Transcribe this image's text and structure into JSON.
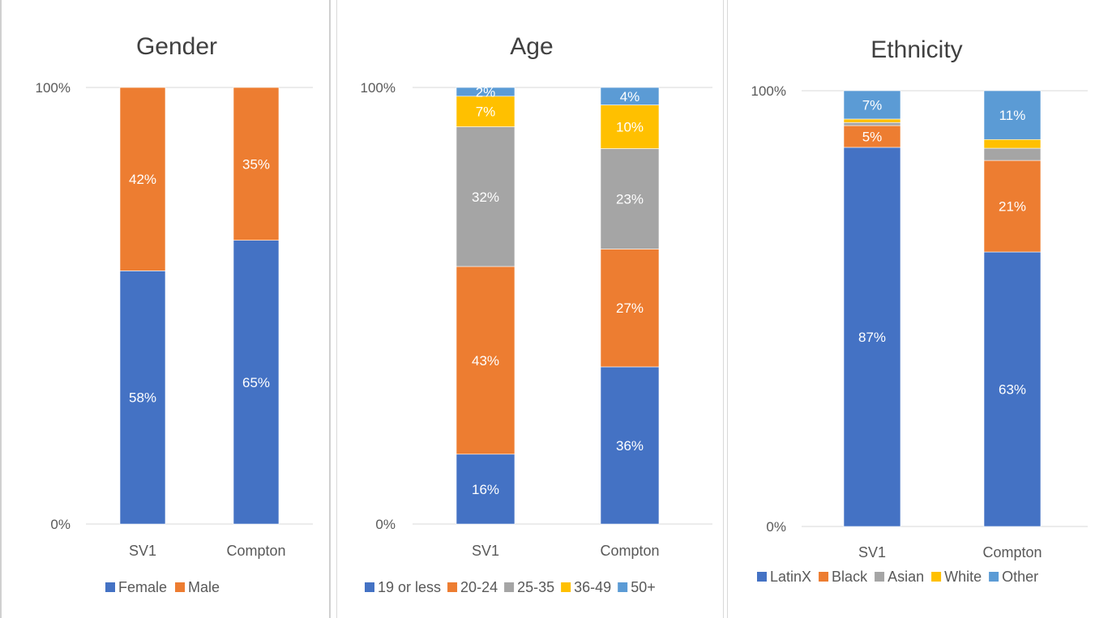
{
  "chart_data": [
    {
      "type": "bar",
      "stacked": true,
      "title": "Gender",
      "categories": [
        "SV1",
        "Compton"
      ],
      "yticks": [
        "0%",
        "100%"
      ],
      "ylim": [
        0,
        100
      ],
      "legend_position": "bottom",
      "series": [
        {
          "name": "Female",
          "color": "#4472C4",
          "values": [
            58,
            65
          ],
          "labels": [
            "58%",
            "65%"
          ]
        },
        {
          "name": "Male",
          "color": "#ED7D31",
          "values": [
            42,
            35
          ],
          "labels": [
            "42%",
            "35%"
          ]
        }
      ]
    },
    {
      "type": "bar",
      "stacked": true,
      "title": "Age",
      "categories": [
        "SV1",
        "Compton"
      ],
      "yticks": [
        "0%",
        "100%"
      ],
      "ylim": [
        0,
        100
      ],
      "legend_position": "bottom",
      "series": [
        {
          "name": "19 or less",
          "color": "#4472C4",
          "values": [
            16,
            36
          ],
          "labels": [
            "16%",
            "36%"
          ]
        },
        {
          "name": "20-24",
          "color": "#ED7D31",
          "values": [
            43,
            27
          ],
          "labels": [
            "43%",
            "27%"
          ]
        },
        {
          "name": "25-35",
          "color": "#A5A5A5",
          "values": [
            32,
            23
          ],
          "labels": [
            "32%",
            "23%"
          ]
        },
        {
          "name": "36-49",
          "color": "#FFC000",
          "values": [
            7,
            10
          ],
          "labels": [
            "7%",
            "10%"
          ]
        },
        {
          "name": "50+",
          "color": "#5B9BD5",
          "values": [
            2,
            4
          ],
          "labels": [
            "2%",
            "4%"
          ]
        }
      ]
    },
    {
      "type": "bar",
      "stacked": true,
      "title": "Ethnicity",
      "categories": [
        "SV1",
        "Compton"
      ],
      "yticks": [
        "0%",
        "100%"
      ],
      "ylim": [
        0,
        100
      ],
      "legend_position": "bottom",
      "series": [
        {
          "name": "LatinX",
          "color": "#4472C4",
          "values": [
            87,
            63
          ],
          "labels": [
            "87%",
            "63%"
          ]
        },
        {
          "name": "Black",
          "color": "#ED7D31",
          "values": [
            5,
            21
          ],
          "labels": [
            "5%",
            "21%"
          ]
        },
        {
          "name": "Asian",
          "color": "#A5A5A5",
          "values": [
            0.7,
            2.8
          ],
          "labels": [
            "",
            ""
          ]
        },
        {
          "name": "White",
          "color": "#FFC000",
          "values": [
            0.8,
            2
          ],
          "labels": [
            "",
            ""
          ]
        },
        {
          "name": "Other",
          "color": "#5B9BD5",
          "values": [
            6.5,
            11.2
          ],
          "labels": [
            "7%",
            "11%"
          ]
        }
      ]
    }
  ]
}
